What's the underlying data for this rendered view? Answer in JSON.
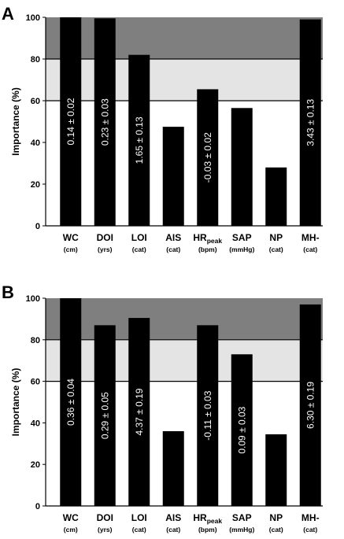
{
  "chart_data": [
    {
      "panel": "A",
      "type": "bar",
      "ylabel": "Importance (%)",
      "ylim": [
        0,
        100
      ],
      "yticks": [
        0,
        20,
        40,
        60,
        80,
        100
      ],
      "bands": [
        {
          "from": 80,
          "to": 100,
          "color": "#7f7f7f"
        },
        {
          "from": 60,
          "to": 80,
          "color": "#e4e4e4"
        }
      ],
      "categories": [
        {
          "label": "WC",
          "unit": "(cm)"
        },
        {
          "label": "DOI",
          "unit": "(yrs)"
        },
        {
          "label": "LOI",
          "unit": "(cat)"
        },
        {
          "label": "AIS",
          "unit": "(cat)"
        },
        {
          "label": "HR",
          "sub": "peak",
          "unit": "(bpm)"
        },
        {
          "label": "SAP",
          "unit": "(mmHg)"
        },
        {
          "label": "NP",
          "unit": "(cat)"
        },
        {
          "label": "MH-",
          "unit": "(cat)"
        }
      ],
      "values": [
        100,
        99.5,
        82,
        47.5,
        65.5,
        56.5,
        28,
        99
      ],
      "bar_labels": [
        "0.14 ± 0.02",
        "0.23 ± 0.03",
        "1.65 ± 0.13",
        "",
        "-0.03 ± 0.02",
        "",
        "",
        "3.43 ± 0.13"
      ],
      "bar_color": "#000000"
    },
    {
      "panel": "B",
      "type": "bar",
      "ylabel": "Importance (%)",
      "ylim": [
        0,
        100
      ],
      "yticks": [
        0,
        20,
        40,
        60,
        80,
        100
      ],
      "bands": [
        {
          "from": 80,
          "to": 100,
          "color": "#7f7f7f"
        },
        {
          "from": 60,
          "to": 80,
          "color": "#e4e4e4"
        }
      ],
      "categories": [
        {
          "label": "WC",
          "unit": "(cm)"
        },
        {
          "label": "DOI",
          "unit": "(yrs)"
        },
        {
          "label": "LOI",
          "unit": "(cat)"
        },
        {
          "label": "AIS",
          "unit": "(cat)"
        },
        {
          "label": "HR",
          "sub": "peak",
          "unit": "(bpm)"
        },
        {
          "label": "SAP",
          "unit": "(mmHg)"
        },
        {
          "label": "NP",
          "unit": "(cat)"
        },
        {
          "label": "MH-",
          "unit": "(cat)"
        }
      ],
      "values": [
        100,
        87,
        90.5,
        36,
        87,
        73,
        34.5,
        97
      ],
      "bar_labels": [
        "0.36 ± 0.04",
        "0.29 ± 0.05",
        "4.37 ± 0.19",
        "",
        "-0.11 ± 0.03",
        "0.09 ± 0.03",
        "",
        "6.30 ± 0.19"
      ],
      "bar_color": "#000000"
    }
  ]
}
